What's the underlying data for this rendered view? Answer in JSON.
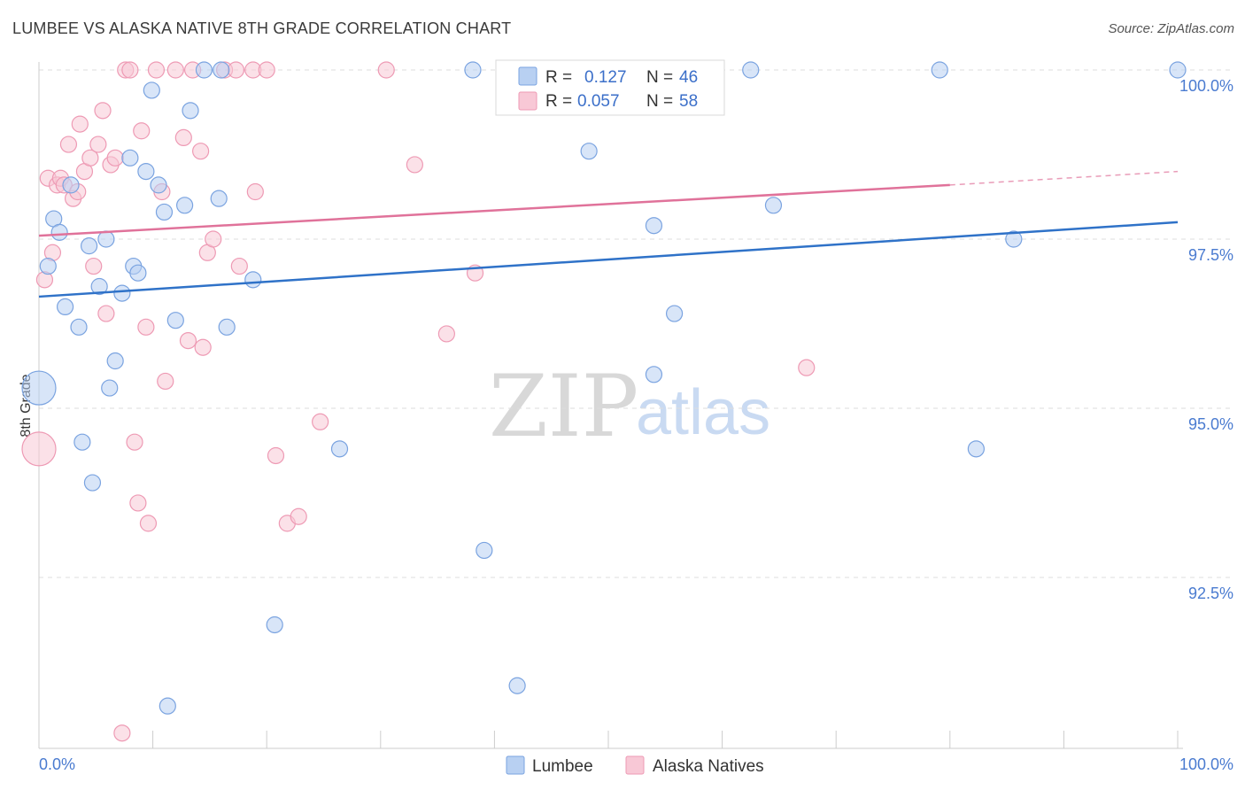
{
  "title": "LUMBEE VS ALASKA NATIVE 8TH GRADE CORRELATION CHART",
  "source": "Source: ZipAtlas.com",
  "watermark": {
    "zip": "ZIP",
    "atlas": "atlas"
  },
  "colors": {
    "lumbee_fill": "#b8d0f2",
    "lumbee_stroke": "#7aa3e0",
    "lumbee_line": "#2f72c8",
    "alaska_fill": "#f8c8d6",
    "alaska_stroke": "#ee9ab4",
    "alaska_line": "#e0729a",
    "grid": "#dddddd",
    "tick_label": "#4a7bd0"
  },
  "legend_top": {
    "rows": [
      {
        "r_label": "R =",
        "r_value": "0.127",
        "n_label": "N =",
        "n_value": "46"
      },
      {
        "r_label": "R =",
        "r_value": "0.057",
        "n_label": "N =",
        "n_value": "58"
      }
    ]
  },
  "legend_bottom": {
    "lumbee": "Lumbee",
    "alaska": "Alaska Natives"
  },
  "chart_data": {
    "type": "scatter",
    "title": "LUMBEE VS ALASKA NATIVE 8TH GRADE CORRELATION CHART",
    "xlabel": "",
    "ylabel": "8th Grade",
    "xlim": [
      0,
      100
    ],
    "ylim": [
      89.7,
      100.3
    ],
    "x_tick_labels": [
      "0.0%",
      "100.0%"
    ],
    "y_ticks": [
      92.5,
      95.0,
      97.5,
      100.0
    ],
    "y_tick_labels": [
      "92.5%",
      "95.0%",
      "97.5%",
      "100.0%"
    ],
    "series": [
      {
        "name": "Lumbee",
        "R": 0.127,
        "N": 46,
        "trend": {
          "x": [
            0,
            100
          ],
          "y": [
            96.65,
            97.75
          ]
        },
        "points": [
          [
            0,
            95.3,
            "lg"
          ],
          [
            0.8,
            97.1
          ],
          [
            1.3,
            97.8
          ],
          [
            1.8,
            97.6
          ],
          [
            2.3,
            96.5
          ],
          [
            2.8,
            98.3
          ],
          [
            3.5,
            96.2
          ],
          [
            3.8,
            94.5
          ],
          [
            4.4,
            97.4
          ],
          [
            4.7,
            93.9
          ],
          [
            5.3,
            96.8
          ],
          [
            5.9,
            97.5
          ],
          [
            6.2,
            95.3
          ],
          [
            6.7,
            95.7
          ],
          [
            7.3,
            96.7
          ],
          [
            8.0,
            98.7
          ],
          [
            8.3,
            97.1
          ],
          [
            8.7,
            97.0
          ],
          [
            9.4,
            98.5
          ],
          [
            9.9,
            99.7
          ],
          [
            10.5,
            98.3
          ],
          [
            11.0,
            97.9
          ],
          [
            11.3,
            90.6
          ],
          [
            12.0,
            96.3
          ],
          [
            12.8,
            98.0
          ],
          [
            13.3,
            99.4
          ],
          [
            14.5,
            100.0
          ],
          [
            15.8,
            98.1
          ],
          [
            16.0,
            100.0
          ],
          [
            16.5,
            96.2
          ],
          [
            18.8,
            96.9
          ],
          [
            20.7,
            91.8
          ],
          [
            26.4,
            94.4
          ],
          [
            38.1,
            100.0
          ],
          [
            39.1,
            92.9
          ],
          [
            42.0,
            90.9
          ],
          [
            48.3,
            98.8
          ],
          [
            54.0,
            97.7
          ],
          [
            54.0,
            95.5
          ],
          [
            55.8,
            96.4
          ],
          [
            62.5,
            100.0
          ],
          [
            64.5,
            98.0
          ],
          [
            79.1,
            100.0
          ],
          [
            82.3,
            94.4
          ],
          [
            85.6,
            97.5
          ],
          [
            100.0,
            100.0
          ]
        ]
      },
      {
        "name": "Alaska Natives",
        "R": 0.057,
        "N": 58,
        "trend": {
          "x": [
            0,
            80,
            100
          ],
          "y": [
            97.55,
            98.3,
            98.5
          ],
          "solid_until": 80
        },
        "points": [
          [
            0,
            94.4,
            "lg"
          ],
          [
            0.5,
            96.9
          ],
          [
            0.8,
            98.4
          ],
          [
            1.2,
            97.3
          ],
          [
            1.6,
            98.3
          ],
          [
            1.9,
            98.4
          ],
          [
            2.2,
            98.3
          ],
          [
            2.6,
            98.9
          ],
          [
            3.0,
            98.1
          ],
          [
            3.4,
            98.2
          ],
          [
            3.6,
            99.2
          ],
          [
            4.0,
            98.5
          ],
          [
            4.5,
            98.7
          ],
          [
            4.8,
            97.1
          ],
          [
            5.2,
            98.9
          ],
          [
            5.6,
            99.4
          ],
          [
            5.9,
            96.4
          ],
          [
            6.3,
            98.6
          ],
          [
            6.7,
            98.7
          ],
          [
            7.3,
            90.2
          ],
          [
            7.6,
            100.0
          ],
          [
            8.0,
            100.0
          ],
          [
            8.4,
            94.5
          ],
          [
            8.7,
            93.6
          ],
          [
            9.0,
            99.1
          ],
          [
            9.4,
            96.2
          ],
          [
            9.6,
            93.3
          ],
          [
            10.3,
            100.0
          ],
          [
            10.8,
            98.2
          ],
          [
            11.1,
            95.4
          ],
          [
            12.0,
            100.0
          ],
          [
            12.7,
            99.0
          ],
          [
            13.1,
            96.0
          ],
          [
            13.5,
            100.0
          ],
          [
            14.2,
            98.8
          ],
          [
            14.4,
            95.9
          ],
          [
            14.8,
            97.3
          ],
          [
            15.3,
            97.5
          ],
          [
            16.3,
            100.0
          ],
          [
            17.3,
            100.0
          ],
          [
            17.6,
            97.1
          ],
          [
            18.8,
            100.0
          ],
          [
            19.0,
            98.2
          ],
          [
            20.0,
            100.0
          ],
          [
            20.8,
            94.3
          ],
          [
            21.8,
            93.3
          ],
          [
            22.8,
            93.4
          ],
          [
            24.7,
            94.8
          ],
          [
            30.5,
            100.0
          ],
          [
            33.0,
            98.6
          ],
          [
            35.8,
            96.1
          ],
          [
            38.3,
            97.0
          ],
          [
            41.0,
            100.0
          ],
          [
            42.0,
            100.0
          ],
          [
            43.5,
            100.0
          ],
          [
            44.8,
            100.0
          ],
          [
            46.0,
            100.0
          ],
          [
            67.4,
            95.6
          ]
        ]
      }
    ]
  }
}
